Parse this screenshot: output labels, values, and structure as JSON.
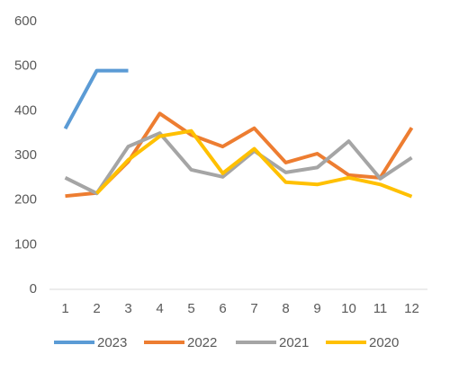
{
  "chart_data": {
    "type": "line",
    "categories": [
      "1",
      "2",
      "3",
      "4",
      "5",
      "6",
      "7",
      "8",
      "9",
      "10",
      "11",
      "12"
    ],
    "series": [
      {
        "name": "2023",
        "color": "#5b9bd5",
        "values": [
          360,
          490,
          490,
          null,
          null,
          null,
          null,
          null,
          null,
          null,
          null,
          null
        ]
      },
      {
        "name": "2022",
        "color": "#ed7d31",
        "values": [
          209,
          216,
          286,
          394,
          346,
          320,
          361,
          284,
          304,
          256,
          250,
          362
        ]
      },
      {
        "name": "2021",
        "color": "#a5a5a5",
        "values": [
          250,
          215,
          320,
          350,
          268,
          252,
          310,
          262,
          273,
          332,
          248,
          295
        ]
      },
      {
        "name": "2020",
        "color": "#ffc000",
        "values": [
          null,
          215,
          290,
          343,
          355,
          260,
          315,
          240,
          235,
          250,
          235,
          208
        ]
      }
    ],
    "ylim": [
      0,
      600
    ],
    "yticks": [
      0,
      100,
      200,
      300,
      400,
      500,
      600
    ],
    "grid": false,
    "legend": "bottom"
  }
}
